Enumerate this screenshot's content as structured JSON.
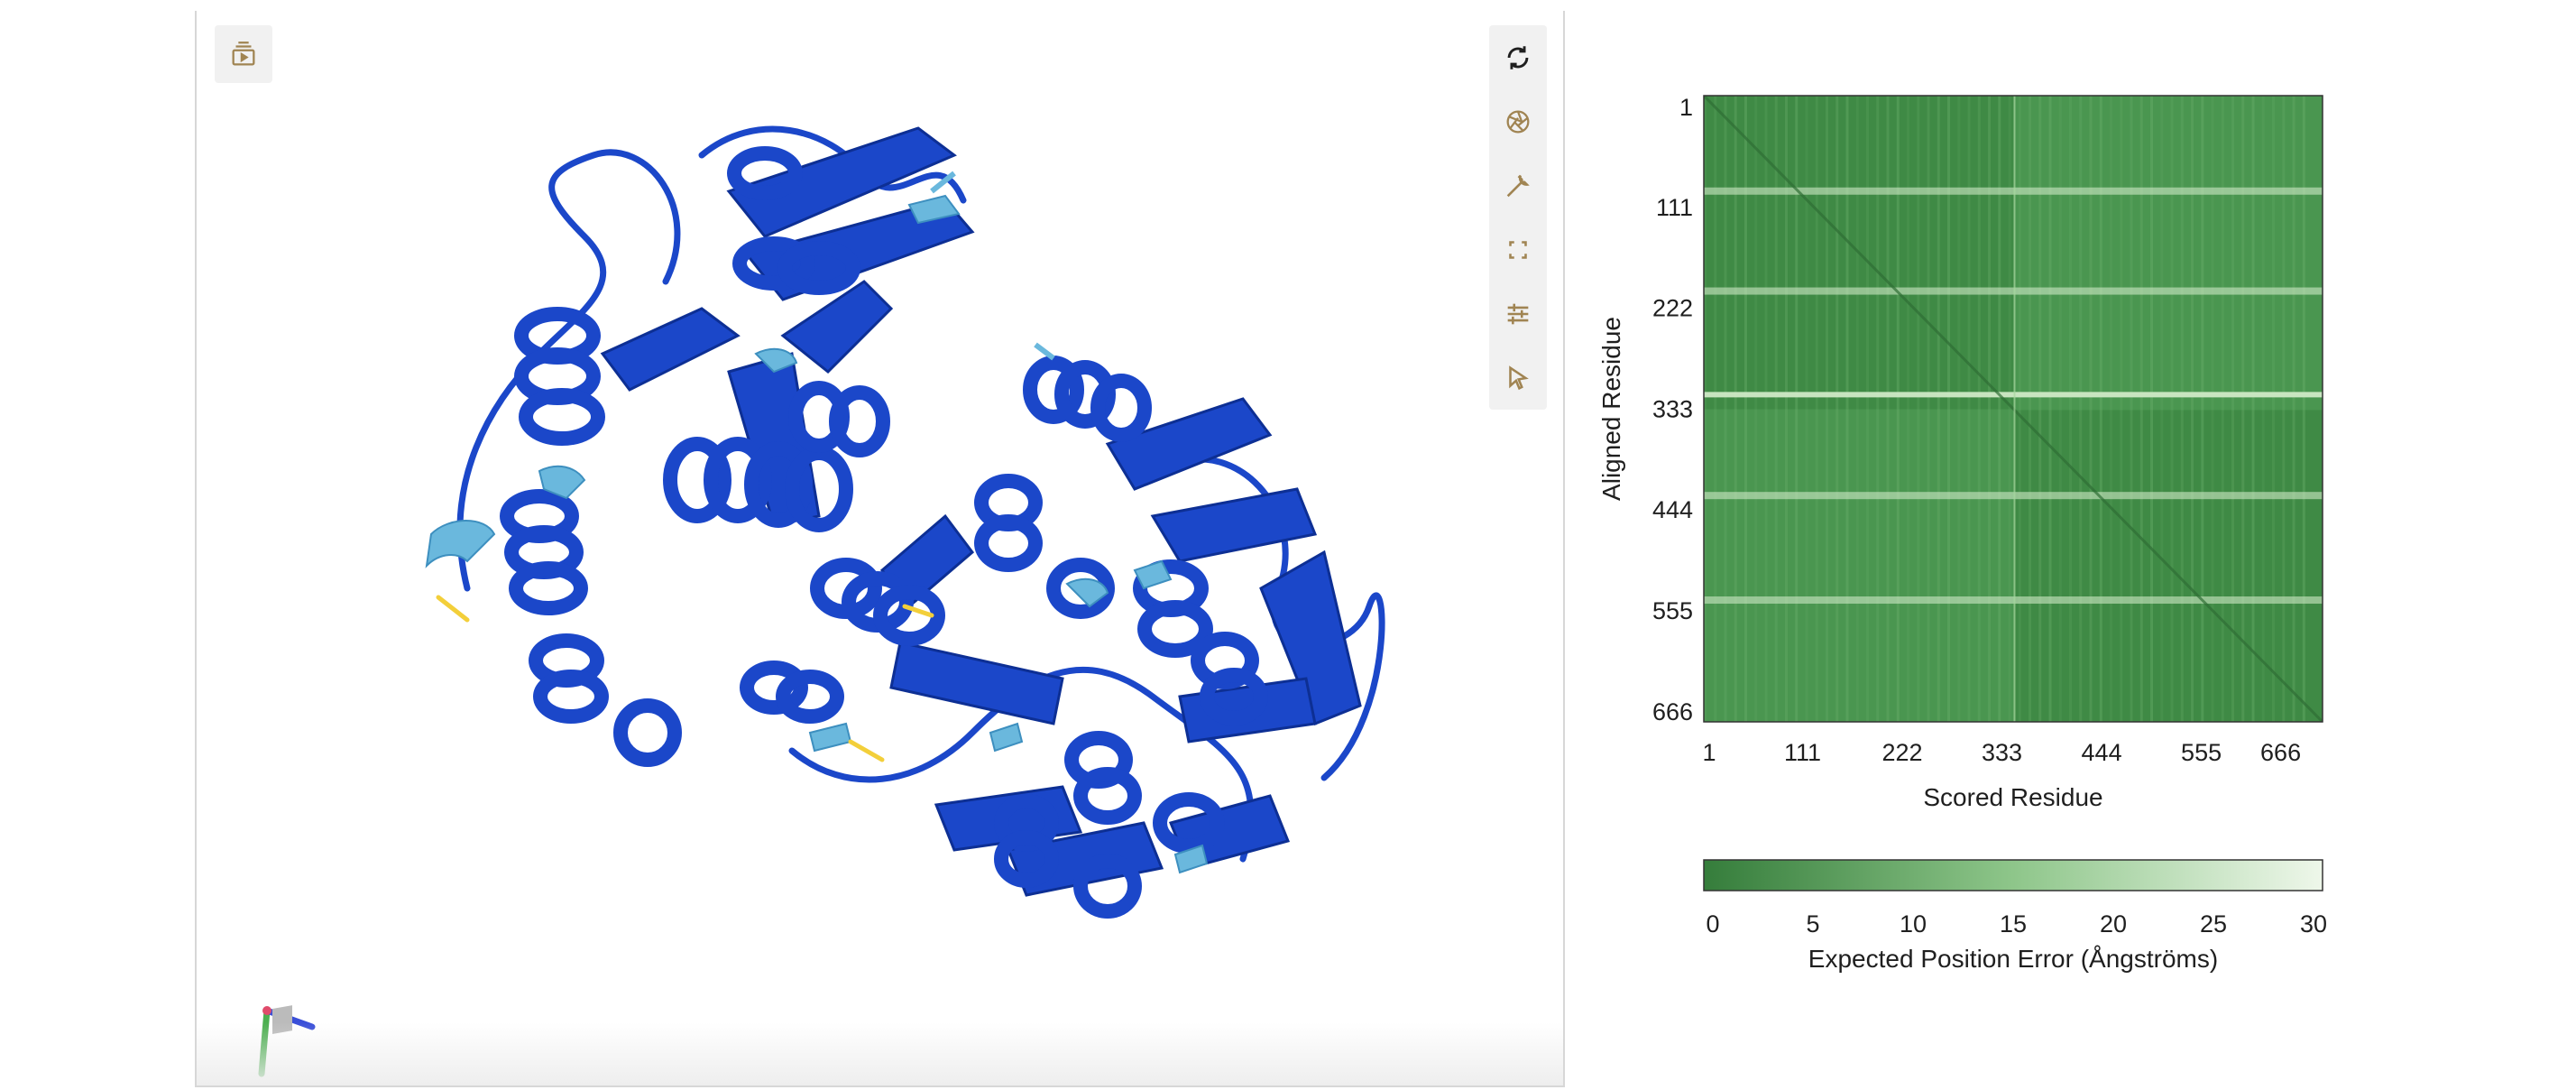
{
  "viewer": {
    "toolbar_left": {
      "icon": "media-controls-icon"
    },
    "toolbar_right": [
      {
        "name": "reset-view-button",
        "icon": "rotate-icon"
      },
      {
        "name": "spin-button",
        "icon": "aperture-icon"
      },
      {
        "name": "tools-button",
        "icon": "wrench-icon"
      },
      {
        "name": "fullscreen-button",
        "icon": "expand-icon"
      },
      {
        "name": "settings-button",
        "icon": "sliders-icon"
      },
      {
        "name": "select-mode-button",
        "icon": "cursor-icon"
      }
    ],
    "colors": {
      "very_high": "#1b47c9",
      "confident": "#6ab8dd",
      "low": "#f3cf3a",
      "accent": "#a08452"
    }
  },
  "chart_data": {
    "type": "heatmap",
    "title": "",
    "xlabel": "Scored Residue",
    "ylabel": "Aligned Residue",
    "x_ticks": [
      "1",
      "111",
      "222",
      "333",
      "444",
      "555",
      "666"
    ],
    "y_ticks": [
      "1",
      "111",
      "222",
      "333",
      "444",
      "555",
      "666"
    ],
    "xlim": [
      1,
      690
    ],
    "ylim": [
      1,
      690
    ],
    "domains": [
      [
        1,
        346
      ],
      [
        347,
        690
      ]
    ],
    "bright_rows": [
      105,
      215,
      330,
      440,
      555
    ],
    "colorbar": {
      "ticks": [
        "0",
        "5",
        "10",
        "15",
        "20",
        "25",
        "30"
      ],
      "range": [
        0,
        30
      ],
      "label": "Expected Position Error (Ångströms)",
      "low_color": "#357d3b",
      "high_color": "#eef7ea"
    }
  }
}
